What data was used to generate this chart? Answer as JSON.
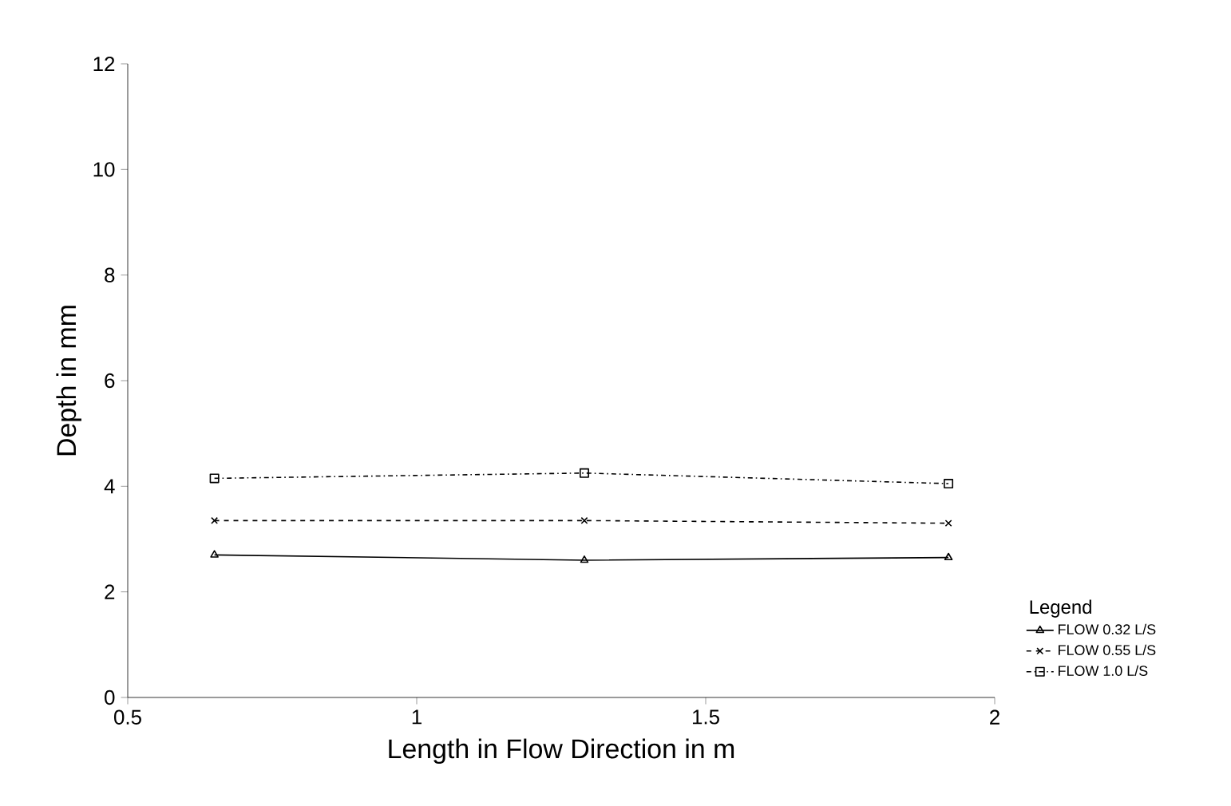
{
  "chart_data": {
    "type": "line",
    "xlabel": "Length in Flow Direction in m",
    "ylabel": "Depth in mm",
    "legend_title": "Legend",
    "legend": "bottom right",
    "grid": false,
    "x": [
      0.65,
      1.29,
      1.92
    ],
    "series": [
      {
        "name": "FLOW 0.32 L/S",
        "color": "#000000",
        "marker": "triangle",
        "line_style": "solid",
        "values": [
          2.7,
          2.6,
          2.65
        ]
      },
      {
        "name": "FLOW 0.55 L/S",
        "color": "#000000",
        "marker": "cross",
        "line_style": "dashed",
        "values": [
          3.35,
          3.35,
          3.3
        ]
      },
      {
        "name": "FLOW 1.0 L/S",
        "color": "#000000",
        "marker": "square",
        "line_style": "dashdotted",
        "values": [
          4.15,
          4.25,
          4.05
        ]
      }
    ],
    "xlim": [
      0.5,
      2
    ],
    "xticks": [
      0.5,
      1,
      1.5,
      2
    ],
    "ylim": [
      0,
      12
    ],
    "yticks": [
      0,
      2,
      4,
      6,
      8,
      10,
      12
    ]
  }
}
